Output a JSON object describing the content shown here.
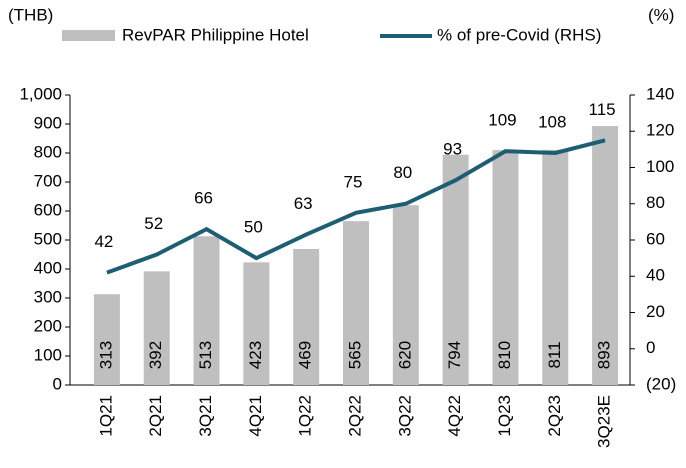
{
  "chart_data": {
    "type": "bar-line",
    "y_label": "(THB)",
    "y2_label": "(%)",
    "categories": [
      "1Q21",
      "2Q21",
      "3Q21",
      "4Q21",
      "1Q22",
      "2Q22",
      "3Q22",
      "4Q22",
      "1Q23",
      "2Q23",
      "3Q23E"
    ],
    "series": [
      {
        "name": "RevPAR Philippine Hotel",
        "type": "bar",
        "color": "#bfbfbf",
        "values": [
          313,
          392,
          513,
          423,
          469,
          565,
          620,
          794,
          810,
          811,
          893
        ]
      },
      {
        "name": "% of pre-Covid (RHS)",
        "type": "line",
        "axis": "y2",
        "color": "#1d5e72",
        "values": [
          42,
          52,
          66,
          50,
          63,
          75,
          80,
          93,
          109,
          108,
          115
        ]
      }
    ],
    "ylim": [
      0,
      1000
    ],
    "yticks": [
      0,
      100,
      200,
      300,
      400,
      500,
      600,
      700,
      800,
      900,
      {
        "value": 1000,
        "label": "1,000"
      }
    ],
    "y2lim": [
      -20,
      140
    ],
    "y2ticks": [
      {
        "value": -20,
        "label": "(20)"
      },
      0,
      20,
      40,
      60,
      80,
      100,
      120,
      140
    ]
  }
}
